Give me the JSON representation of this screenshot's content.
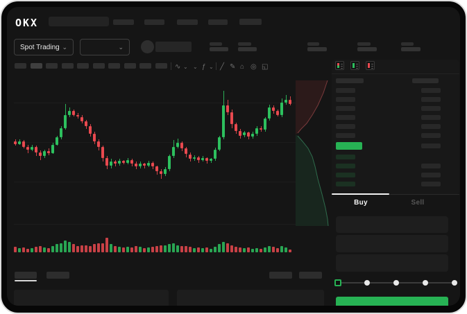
{
  "header": {
    "logo": "OKX"
  },
  "market_bar": {
    "market_type_label": "Spot Trading",
    "chevron": "⌄"
  },
  "chart_toolbar": {
    "icon_glyphs": {
      "candle_style": "∿",
      "chevron": "⌄",
      "indicators": "ƒ",
      "trend_line": "╱",
      "draw": "✎",
      "camera": "⌂",
      "settings": "◎",
      "fullscreen": "◱"
    }
  },
  "colors": {
    "up": "#2dc05e",
    "down": "#e8494f",
    "accent_green": "#27b254",
    "panel": "#181818"
  },
  "orderbook": {
    "view_icons": [
      "orderbook-combined-icon",
      "orderbook-bids-icon",
      "orderbook-asks-icon"
    ],
    "ask_rows": 6,
    "bid_rows": 4,
    "bid_amount_present": [
      false,
      true,
      true,
      true
    ],
    "tabs": {
      "buy": "Buy",
      "sell": "Sell"
    }
  },
  "order_form": {
    "inputs": 3,
    "slider": {
      "stops": 5,
      "active_index": 0
    },
    "submit_color": "#27b254"
  },
  "chart_data": {
    "type": "candlestick",
    "title": "",
    "note": "No numeric axis labels are visible in the screenshot; prices normalized to a 0-100 scale, order [open, close, high, low]. Volume normalized 0-100.",
    "up_color": "#2dc05e",
    "down_color": "#e8494f",
    "candles_ochl": [
      [
        44,
        41,
        46,
        39
      ],
      [
        41,
        44,
        46,
        40
      ],
      [
        44,
        38,
        45,
        36
      ],
      [
        38,
        35,
        40,
        31
      ],
      [
        35,
        38,
        40,
        33
      ],
      [
        38,
        32,
        39,
        28
      ],
      [
        32,
        28,
        34,
        24
      ],
      [
        28,
        33,
        35,
        26
      ],
      [
        33,
        31,
        36,
        29
      ],
      [
        31,
        40,
        42,
        30
      ],
      [
        40,
        48,
        50,
        39
      ],
      [
        48,
        58,
        60,
        46
      ],
      [
        58,
        72,
        84,
        56
      ],
      [
        72,
        76,
        80,
        70
      ],
      [
        76,
        72,
        78,
        70
      ],
      [
        72,
        70,
        74,
        68
      ],
      [
        70,
        65,
        72,
        63
      ],
      [
        65,
        60,
        67,
        57
      ],
      [
        60,
        52,
        62,
        49
      ],
      [
        52,
        44,
        54,
        41
      ],
      [
        44,
        38,
        46,
        34
      ],
      [
        38,
        26,
        39,
        22
      ],
      [
        26,
        18,
        28,
        14
      ],
      [
        18,
        22,
        25,
        15
      ],
      [
        22,
        20,
        24,
        17
      ],
      [
        20,
        23,
        25,
        18
      ],
      [
        23,
        21,
        24,
        19
      ],
      [
        21,
        24,
        26,
        19
      ],
      [
        24,
        20,
        25,
        17
      ],
      [
        20,
        17,
        22,
        14
      ],
      [
        17,
        20,
        22,
        15
      ],
      [
        20,
        18,
        21,
        15
      ],
      [
        18,
        21,
        23,
        16
      ],
      [
        21,
        17,
        22,
        14
      ],
      [
        17,
        12,
        18,
        8
      ],
      [
        12,
        9,
        14,
        4
      ],
      [
        9,
        14,
        16,
        7
      ],
      [
        14,
        28,
        30,
        12
      ],
      [
        28,
        38,
        45,
        26
      ],
      [
        38,
        42,
        47,
        36
      ],
      [
        42,
        36,
        44,
        33
      ],
      [
        36,
        30,
        38,
        27
      ],
      [
        30,
        25,
        32,
        22
      ],
      [
        25,
        27,
        29,
        23
      ],
      [
        27,
        24,
        28,
        21
      ],
      [
        24,
        26,
        28,
        22
      ],
      [
        26,
        23,
        27,
        20
      ],
      [
        23,
        25,
        26,
        21
      ],
      [
        25,
        35,
        37,
        23
      ],
      [
        35,
        48,
        50,
        33
      ],
      [
        48,
        82,
        98,
        46
      ],
      [
        82,
        75,
        88,
        72
      ],
      [
        75,
        62,
        78,
        58
      ],
      [
        62,
        55,
        64,
        52
      ],
      [
        55,
        50,
        57,
        47
      ],
      [
        50,
        53,
        55,
        48
      ],
      [
        53,
        49,
        54,
        46
      ],
      [
        49,
        52,
        54,
        47
      ],
      [
        52,
        58,
        60,
        50
      ],
      [
        58,
        56,
        60,
        54
      ],
      [
        56,
        68,
        70,
        54
      ],
      [
        68,
        80,
        83,
        66
      ],
      [
        80,
        76,
        82,
        73
      ],
      [
        76,
        72,
        78,
        70
      ],
      [
        72,
        85,
        90,
        70
      ],
      [
        85,
        88,
        93,
        83
      ],
      [
        88,
        84,
        92,
        82
      ]
    ],
    "volume": [
      40,
      30,
      35,
      25,
      30,
      38,
      45,
      35,
      30,
      45,
      55,
      60,
      80,
      70,
      55,
      45,
      50,
      48,
      42,
      55,
      60,
      60,
      100,
      55,
      45,
      40,
      35,
      38,
      35,
      42,
      36,
      30,
      34,
      38,
      45,
      50,
      48,
      55,
      60,
      50,
      42,
      45,
      40,
      30,
      35,
      28,
      32,
      25,
      40,
      55,
      70,
      60,
      50,
      40,
      35,
      28,
      32,
      26,
      30,
      25,
      35,
      45,
      38,
      30,
      42,
      35,
      20
    ],
    "depth_overlay": {
      "asks_side": "top",
      "bids_side": "bottom"
    }
  }
}
